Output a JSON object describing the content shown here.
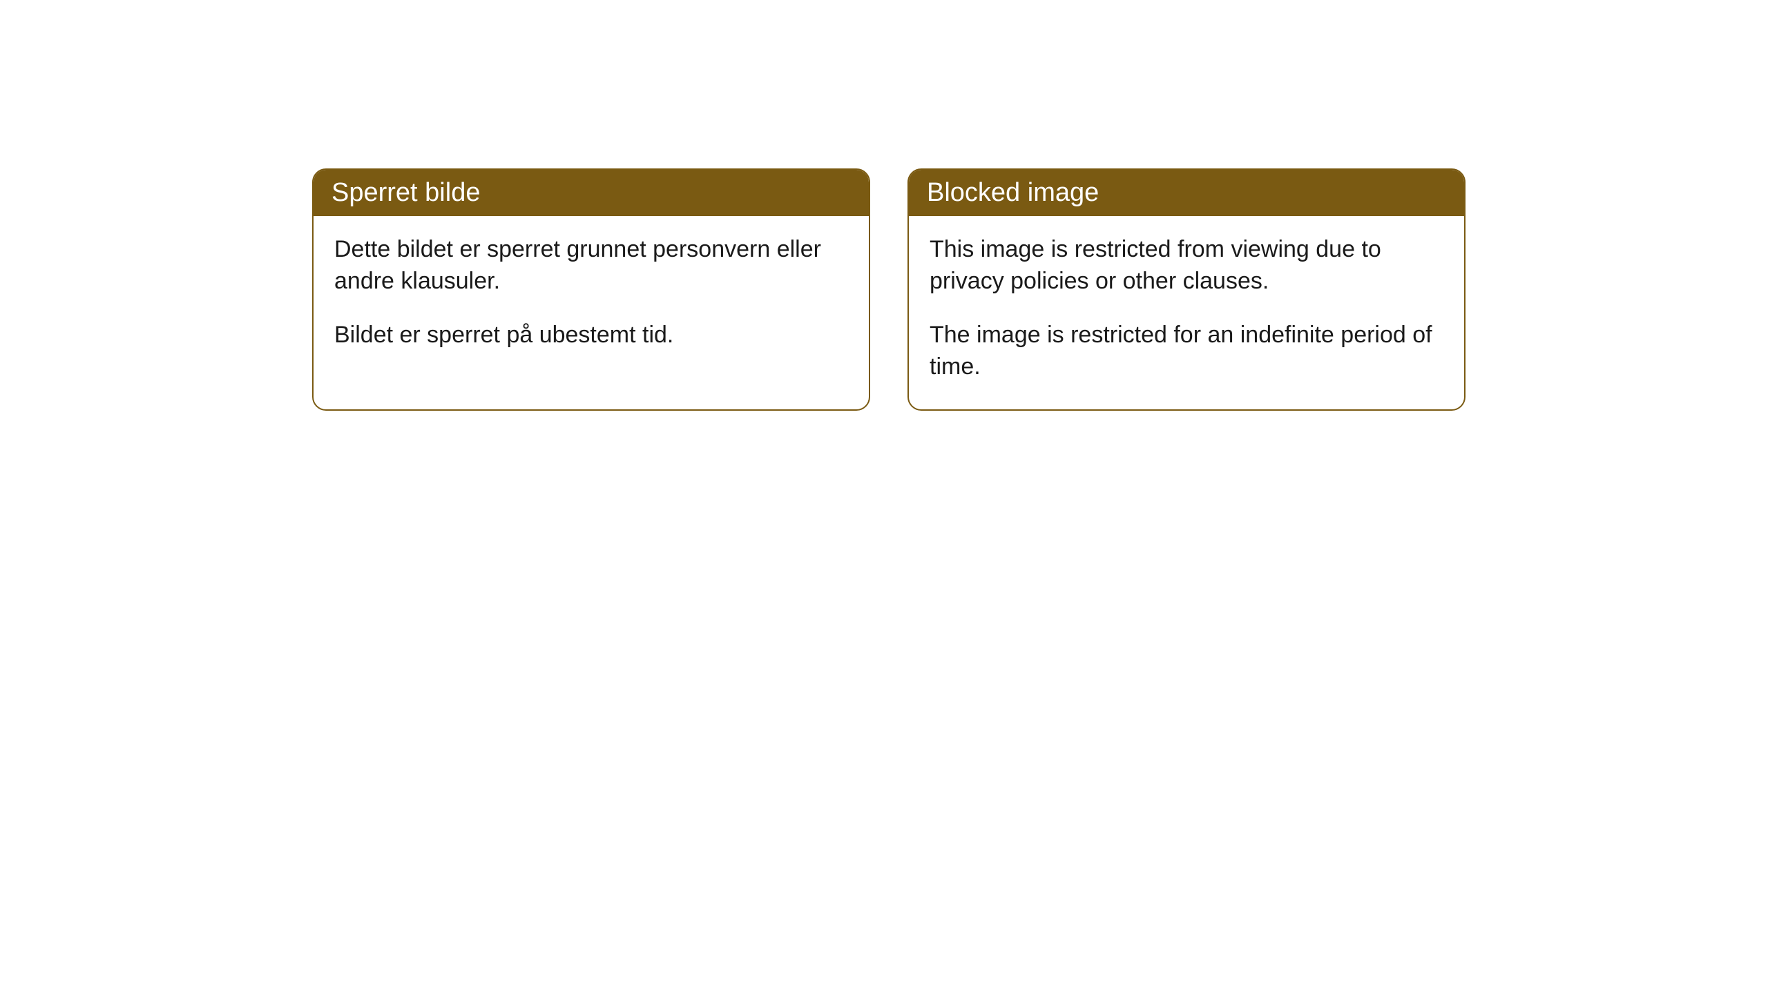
{
  "cards": [
    {
      "title": "Sperret bilde",
      "para1": "Dette bildet er sperret grunnet personvern eller andre klausuler.",
      "para2": "Bildet er sperret på ubestemt tid."
    },
    {
      "title": "Blocked image",
      "para1": "This image is restricted from viewing due to privacy policies or other clauses.",
      "para2": "The image is restricted for an indefinite period of time."
    }
  ],
  "colors": {
    "header_bg": "#7a5a12",
    "header_text": "#ffffff",
    "border": "#7a5a12",
    "body_text": "#1a1a1a",
    "page_bg": "#ffffff"
  }
}
